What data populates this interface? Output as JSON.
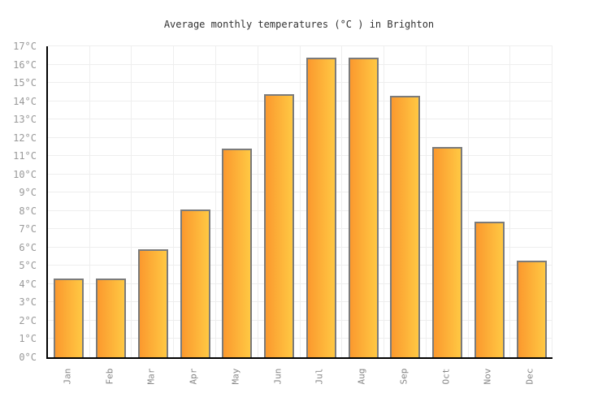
{
  "chart_data": {
    "type": "bar",
    "title": "Average monthly temperatures (°C ) in Brighton",
    "categories": [
      "Jan",
      "Feb",
      "Mar",
      "Apr",
      "May",
      "Jun",
      "Jul",
      "Aug",
      "Sep",
      "Oct",
      "Nov",
      "Dec"
    ],
    "values": [
      4.3,
      4.3,
      5.9,
      8.1,
      11.4,
      14.4,
      16.4,
      16.4,
      14.3,
      11.5,
      7.4,
      5.3
    ],
    "xlabel": "",
    "ylabel": "°C",
    "ylim": [
      0,
      17
    ],
    "y_tick_step": 1,
    "y_tick_suffix": "°C",
    "y_tick_labels": [
      "0°C",
      "1°C",
      "2°C",
      "3°C",
      "4°C",
      "5°C",
      "6°C",
      "7°C",
      "8°C",
      "9°C",
      "10°C",
      "11°C",
      "12°C",
      "13°C",
      "14°C",
      "15°C",
      "16°C",
      "17°C"
    ],
    "grid": true,
    "legend_position": "none",
    "colors": {
      "bar_gradient_left": "#FB992E",
      "bar_gradient_right": "#FFC843",
      "bar_border": "#7B7B7B",
      "axis_line": "#000000",
      "gridline": "#EEEEEE",
      "y_tick_label": "#999999",
      "x_tick_label": "#888888",
      "title_text": "#333333",
      "background": "#FFFFFF"
    }
  }
}
